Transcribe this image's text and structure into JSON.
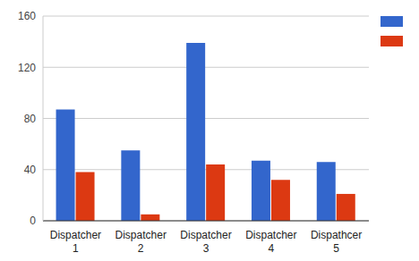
{
  "chart_data": {
    "type": "bar",
    "categories": [
      "Dispatcher 1",
      "Dispatcher 2",
      "Dispatcher 3",
      "Dispatcher 4",
      "Dispathcer 5"
    ],
    "series": [
      {
        "color": "#3366cc",
        "values": [
          87,
          55,
          139,
          47,
          46
        ]
      },
      {
        "color": "#dc3912",
        "values": [
          38,
          5,
          44,
          32,
          21
        ]
      }
    ],
    "ylim": [
      0,
      160
    ],
    "yticks": [
      0,
      40,
      80,
      120,
      160
    ],
    "grid": true,
    "legend": "top-right"
  }
}
